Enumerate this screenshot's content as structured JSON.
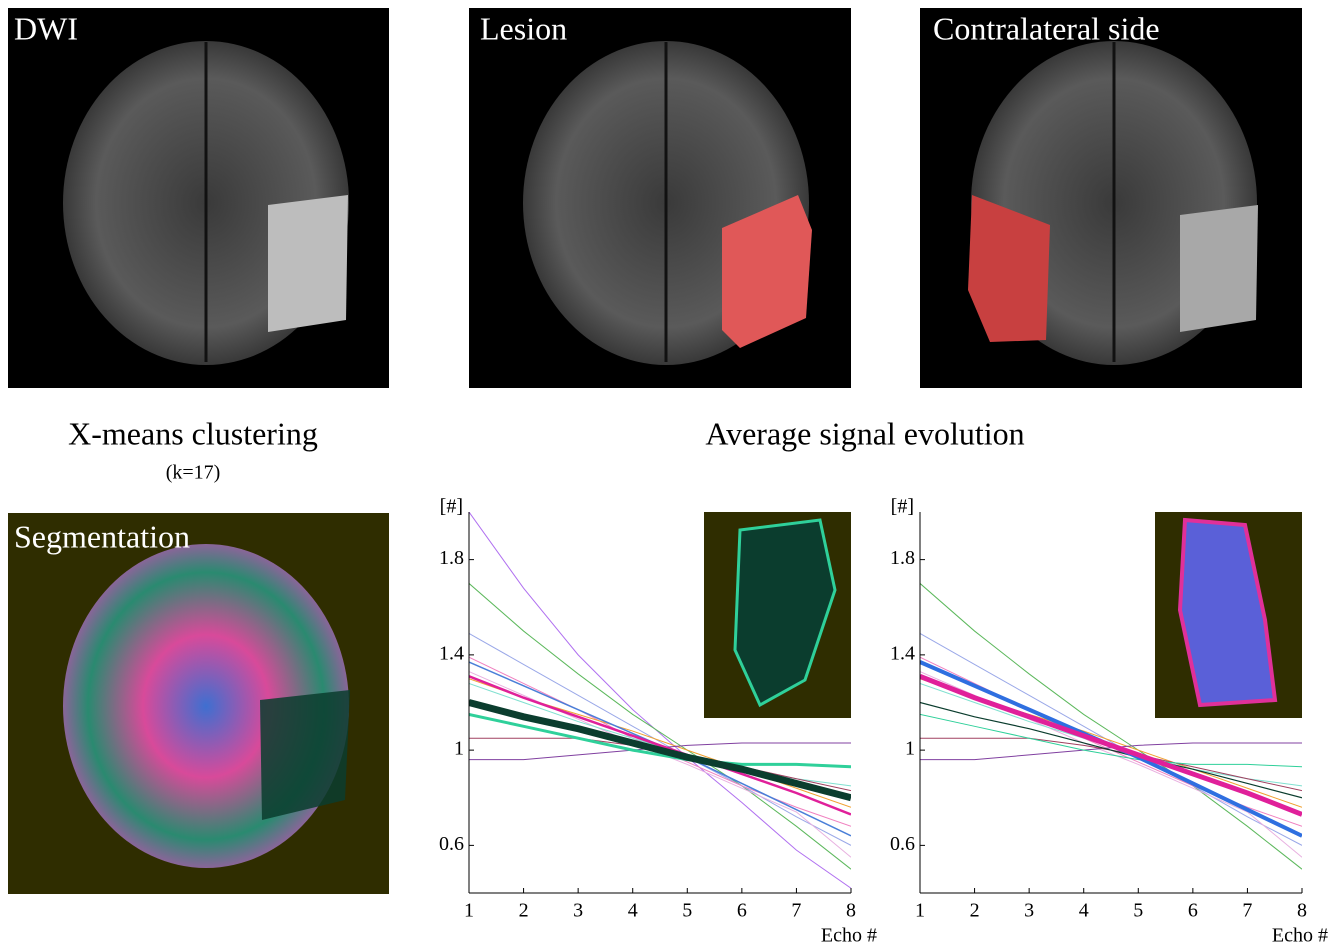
{
  "panels": [
    {
      "label": "DWI"
    },
    {
      "label": "Lesion"
    },
    {
      "label": "Contralateral side"
    },
    {
      "label": "Segmentation"
    }
  ],
  "headings": {
    "clustering": "X-means clustering",
    "clustering_note": "(k=17)",
    "evolution": "Average signal evolution"
  },
  "chart_data": [
    {
      "type": "line",
      "y_label": "[#]",
      "x_label": "Echo #",
      "x": [
        1,
        2,
        3,
        4,
        5,
        6,
        7,
        8
      ],
      "xlim": [
        1,
        8
      ],
      "xticks": [
        1,
        2,
        3,
        4,
        5,
        6,
        7,
        8
      ],
      "ylim": [
        0.4,
        2.0
      ],
      "yticks": [
        0.6,
        1,
        1.4,
        1.8
      ],
      "series": [
        {
          "color": "#b070f0",
          "linewidth": 1,
          "values": [
            2.0,
            1.68,
            1.4,
            1.17,
            0.97,
            0.78,
            0.58,
            0.42
          ]
        },
        {
          "color": "#5cb85c",
          "linewidth": 1,
          "values": [
            1.7,
            1.5,
            1.32,
            1.15,
            1.0,
            0.85,
            0.68,
            0.5
          ]
        },
        {
          "color": "#9aa8e8",
          "linewidth": 1,
          "values": [
            1.49,
            1.36,
            1.23,
            1.1,
            0.97,
            0.85,
            0.72,
            0.6
          ]
        },
        {
          "color": "#f080c0",
          "linewidth": 1,
          "values": [
            1.39,
            1.28,
            1.17,
            1.05,
            0.95,
            0.85,
            0.76,
            0.68
          ]
        },
        {
          "color": "#e8b0e0",
          "linewidth": 1,
          "values": [
            1.33,
            1.23,
            1.13,
            1.03,
            0.94,
            0.84,
            0.74,
            0.55
          ]
        },
        {
          "color": "#f0a030",
          "linewidth": 1,
          "values": [
            1.3,
            1.22,
            1.15,
            1.08,
            1.0,
            0.92,
            0.84,
            0.76
          ]
        },
        {
          "color": "#80e0d0",
          "linewidth": 1,
          "values": [
            1.28,
            1.2,
            1.12,
            1.05,
            0.98,
            0.92,
            0.88,
            0.85
          ]
        },
        {
          "color": "#8040a0",
          "linewidth": 1,
          "values": [
            0.96,
            0.96,
            0.98,
            1.0,
            1.02,
            1.03,
            1.03,
            1.03
          ]
        },
        {
          "color": "#a04060",
          "linewidth": 1,
          "values": [
            1.05,
            1.05,
            1.05,
            1.02,
            0.98,
            0.93,
            0.88,
            0.83
          ]
        },
        {
          "color": "#4a7fd8",
          "linewidth": 1.5,
          "values": [
            1.37,
            1.27,
            1.17,
            1.07,
            0.97,
            0.86,
            0.75,
            0.64
          ]
        },
        {
          "color": "#2fd09a",
          "linewidth": 3,
          "values": [
            1.15,
            1.1,
            1.05,
            1.0,
            0.96,
            0.94,
            0.94,
            0.93
          ]
        },
        {
          "color": "#e0209a",
          "linewidth": 2.5,
          "values": [
            1.31,
            1.22,
            1.14,
            1.06,
            0.98,
            0.9,
            0.82,
            0.73
          ]
        },
        {
          "color": "#0b3d2e",
          "linewidth": 7,
          "values": [
            1.2,
            1.14,
            1.09,
            1.03,
            0.97,
            0.92,
            0.86,
            0.8
          ]
        }
      ]
    },
    {
      "type": "line",
      "y_label": "[#]",
      "x_label": "Echo #",
      "x": [
        1,
        2,
        3,
        4,
        5,
        6,
        7,
        8
      ],
      "xlim": [
        1,
        8
      ],
      "xticks": [
        1,
        2,
        3,
        4,
        5,
        6,
        7,
        8
      ],
      "ylim": [
        0.4,
        2.0
      ],
      "yticks": [
        0.6,
        1,
        1.4,
        1.8
      ],
      "series": [
        {
          "color": "#5cb85c",
          "linewidth": 1,
          "values": [
            1.7,
            1.5,
            1.32,
            1.15,
            1.0,
            0.85,
            0.68,
            0.5
          ]
        },
        {
          "color": "#9aa8e8",
          "linewidth": 1,
          "values": [
            1.49,
            1.36,
            1.23,
            1.1,
            0.97,
            0.85,
            0.72,
            0.6
          ]
        },
        {
          "color": "#f080c0",
          "linewidth": 1,
          "values": [
            1.39,
            1.28,
            1.17,
            1.05,
            0.95,
            0.85,
            0.76,
            0.68
          ]
        },
        {
          "color": "#e8b0e0",
          "linewidth": 1,
          "values": [
            1.33,
            1.23,
            1.13,
            1.03,
            0.94,
            0.84,
            0.74,
            0.55
          ]
        },
        {
          "color": "#f0a030",
          "linewidth": 1,
          "values": [
            1.3,
            1.22,
            1.15,
            1.08,
            1.0,
            0.92,
            0.84,
            0.76
          ]
        },
        {
          "color": "#80e0d0",
          "linewidth": 1,
          "values": [
            1.28,
            1.2,
            1.12,
            1.05,
            0.98,
            0.92,
            0.88,
            0.85
          ]
        },
        {
          "color": "#8040a0",
          "linewidth": 1,
          "values": [
            0.96,
            0.96,
            0.98,
            1.0,
            1.02,
            1.03,
            1.03,
            1.03
          ]
        },
        {
          "color": "#a04060",
          "linewidth": 1,
          "values": [
            1.05,
            1.05,
            1.05,
            1.02,
            0.98,
            0.93,
            0.88,
            0.83
          ]
        },
        {
          "color": "#2fd09a",
          "linewidth": 1,
          "values": [
            1.15,
            1.1,
            1.05,
            1.0,
            0.96,
            0.94,
            0.94,
            0.93
          ]
        },
        {
          "color": "#0b3d2e",
          "linewidth": 1.2,
          "values": [
            1.2,
            1.14,
            1.09,
            1.03,
            0.97,
            0.92,
            0.86,
            0.8
          ]
        },
        {
          "color": "#2f6fe0",
          "linewidth": 4,
          "values": [
            1.37,
            1.27,
            1.17,
            1.07,
            0.97,
            0.86,
            0.75,
            0.64
          ]
        },
        {
          "color": "#e0209a",
          "linewidth": 5,
          "values": [
            1.31,
            1.22,
            1.14,
            1.06,
            0.98,
            0.9,
            0.82,
            0.73
          ]
        }
      ]
    }
  ]
}
